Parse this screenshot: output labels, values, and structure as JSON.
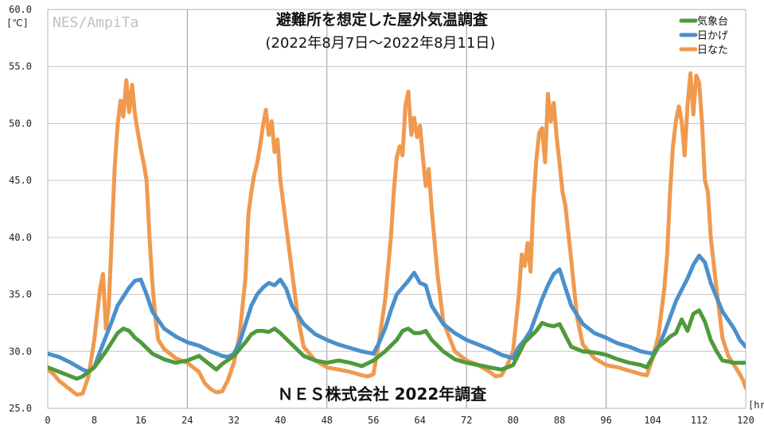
{
  "chart_data": {
    "type": "line",
    "title": "避難所を想定した屋外気温調査",
    "subtitle": "(2022年8月7日～2022年8月11日)",
    "watermark": "NES/AmpiTa",
    "footer": "ＮＥＳ株式会社 2022年調査",
    "y_unit": "[℃]",
    "x_unit": "[hr]",
    "xlim": [
      0,
      120
    ],
    "ylim": [
      25,
      60
    ],
    "x_ticks": [
      0,
      8,
      16,
      24,
      32,
      40,
      48,
      56,
      64,
      72,
      80,
      88,
      96,
      104,
      112,
      120
    ],
    "y_ticks": [
      "25.0",
      "30.0",
      "35.0",
      "40.0",
      "45.0",
      "50.0",
      "55.0",
      "60.0"
    ],
    "grid": true,
    "legend_position": "top-right",
    "series": [
      {
        "name": "気象台",
        "color": "#4e9a3c",
        "points": [
          [
            0,
            28.6
          ],
          [
            2,
            28.2
          ],
          [
            4,
            27.8
          ],
          [
            5,
            27.6
          ],
          [
            6,
            27.8
          ],
          [
            8,
            28.6
          ],
          [
            10,
            30.0
          ],
          [
            11,
            30.8
          ],
          [
            12,
            31.6
          ],
          [
            13,
            32.0
          ],
          [
            14,
            31.8
          ],
          [
            15,
            31.2
          ],
          [
            16,
            30.8
          ],
          [
            18,
            29.8
          ],
          [
            20,
            29.3
          ],
          [
            22,
            29.0
          ],
          [
            24,
            29.2
          ],
          [
            26,
            29.6
          ],
          [
            28,
            28.8
          ],
          [
            29,
            28.4
          ],
          [
            30,
            28.9
          ],
          [
            32,
            29.6
          ],
          [
            34,
            30.8
          ],
          [
            35,
            31.5
          ],
          [
            36,
            31.8
          ],
          [
            37,
            31.8
          ],
          [
            38,
            31.7
          ],
          [
            39,
            32.0
          ],
          [
            40,
            31.6
          ],
          [
            42,
            30.6
          ],
          [
            44,
            29.6
          ],
          [
            46,
            29.2
          ],
          [
            48,
            29.0
          ],
          [
            50,
            29.2
          ],
          [
            52,
            29.0
          ],
          [
            54,
            28.7
          ],
          [
            56,
            29.2
          ],
          [
            58,
            30.0
          ],
          [
            60,
            31.0
          ],
          [
            61,
            31.8
          ],
          [
            62,
            32.0
          ],
          [
            63,
            31.6
          ],
          [
            64,
            31.6
          ],
          [
            65,
            31.8
          ],
          [
            66,
            31.0
          ],
          [
            68,
            30.0
          ],
          [
            70,
            29.3
          ],
          [
            72,
            29.0
          ],
          [
            74,
            28.8
          ],
          [
            76,
            28.6
          ],
          [
            78,
            28.4
          ],
          [
            80,
            28.8
          ],
          [
            81,
            29.8
          ],
          [
            82,
            30.8
          ],
          [
            84,
            31.8
          ],
          [
            85,
            32.5
          ],
          [
            86,
            32.3
          ],
          [
            87,
            32.2
          ],
          [
            88,
            32.4
          ],
          [
            90,
            30.4
          ],
          [
            92,
            30.0
          ],
          [
            94,
            29.9
          ],
          [
            96,
            29.7
          ],
          [
            98,
            29.3
          ],
          [
            100,
            29.0
          ],
          [
            102,
            28.8
          ],
          [
            103,
            28.6
          ],
          [
            104,
            29.5
          ],
          [
            105,
            30.4
          ],
          [
            106,
            30.8
          ],
          [
            107,
            31.3
          ],
          [
            108,
            31.6
          ],
          [
            109,
            32.8
          ],
          [
            110,
            31.8
          ],
          [
            111,
            33.3
          ],
          [
            112,
            33.6
          ],
          [
            113,
            32.6
          ],
          [
            114,
            31.0
          ],
          [
            115,
            30.0
          ],
          [
            116,
            29.2
          ],
          [
            118,
            29.0
          ],
          [
            120,
            29.0
          ]
        ]
      },
      {
        "name": "日かげ",
        "color": "#4a90cc",
        "points": [
          [
            0,
            29.8
          ],
          [
            2,
            29.5
          ],
          [
            4,
            29.0
          ],
          [
            6,
            28.4
          ],
          [
            7,
            28.2
          ],
          [
            8,
            28.6
          ],
          [
            9,
            30.0
          ],
          [
            10,
            31.3
          ],
          [
            11,
            32.6
          ],
          [
            12,
            34.0
          ],
          [
            13,
            34.8
          ],
          [
            14,
            35.6
          ],
          [
            15,
            36.2
          ],
          [
            16,
            36.3
          ],
          [
            17,
            35.0
          ],
          [
            18,
            33.5
          ],
          [
            20,
            32.0
          ],
          [
            22,
            31.3
          ],
          [
            24,
            30.8
          ],
          [
            26,
            30.5
          ],
          [
            28,
            30.0
          ],
          [
            30,
            29.6
          ],
          [
            31,
            29.5
          ],
          [
            32,
            29.8
          ],
          [
            33,
            30.8
          ],
          [
            34,
            32.4
          ],
          [
            35,
            34.0
          ],
          [
            36,
            35.0
          ],
          [
            37,
            35.6
          ],
          [
            38,
            36.0
          ],
          [
            39,
            35.8
          ],
          [
            40,
            36.3
          ],
          [
            41,
            35.5
          ],
          [
            42,
            34.0
          ],
          [
            44,
            32.4
          ],
          [
            46,
            31.5
          ],
          [
            48,
            31.0
          ],
          [
            50,
            30.6
          ],
          [
            52,
            30.3
          ],
          [
            54,
            30.0
          ],
          [
            56,
            29.8
          ],
          [
            57,
            30.8
          ],
          [
            58,
            32.0
          ],
          [
            59,
            33.6
          ],
          [
            60,
            35.0
          ],
          [
            61,
            35.6
          ],
          [
            62,
            36.2
          ],
          [
            63,
            36.9
          ],
          [
            64,
            36.0
          ],
          [
            65,
            35.8
          ],
          [
            66,
            34.0
          ],
          [
            68,
            32.4
          ],
          [
            70,
            31.6
          ],
          [
            72,
            31.0
          ],
          [
            74,
            30.6
          ],
          [
            76,
            30.2
          ],
          [
            78,
            29.7
          ],
          [
            80,
            29.4
          ],
          [
            81,
            30.4
          ],
          [
            82,
            31.0
          ],
          [
            83,
            31.8
          ],
          [
            84,
            33.2
          ],
          [
            85,
            34.6
          ],
          [
            86,
            35.8
          ],
          [
            87,
            36.8
          ],
          [
            88,
            37.2
          ],
          [
            89,
            35.6
          ],
          [
            90,
            34.0
          ],
          [
            92,
            32.4
          ],
          [
            94,
            31.6
          ],
          [
            96,
            31.2
          ],
          [
            98,
            30.7
          ],
          [
            100,
            30.4
          ],
          [
            102,
            30.0
          ],
          [
            104,
            29.8
          ],
          [
            105,
            30.4
          ],
          [
            106,
            31.6
          ],
          [
            107,
            33.0
          ],
          [
            108,
            34.4
          ],
          [
            109,
            35.4
          ],
          [
            110,
            36.4
          ],
          [
            111,
            37.6
          ],
          [
            112,
            38.4
          ],
          [
            113,
            37.8
          ],
          [
            114,
            36.0
          ],
          [
            116,
            33.5
          ],
          [
            118,
            32.0
          ],
          [
            119,
            31.0
          ],
          [
            120,
            30.4
          ]
        ]
      },
      {
        "name": "日なた",
        "color": "#ef9a4f",
        "points": [
          [
            0,
            28.4
          ],
          [
            1,
            28.0
          ],
          [
            2,
            27.4
          ],
          [
            3,
            27.0
          ],
          [
            4,
            26.6
          ],
          [
            5,
            26.2
          ],
          [
            6,
            26.3
          ],
          [
            7,
            27.8
          ],
          [
            8,
            31.0
          ],
          [
            9,
            35.5
          ],
          [
            9.5,
            36.8
          ],
          [
            10,
            32.0
          ],
          [
            10.5,
            34.0
          ],
          [
            11,
            40.0
          ],
          [
            11.5,
            46.0
          ],
          [
            12,
            49.8
          ],
          [
            12.5,
            52.0
          ],
          [
            13,
            50.6
          ],
          [
            13.5,
            53.8
          ],
          [
            14,
            51.0
          ],
          [
            14.5,
            53.4
          ],
          [
            15,
            50.8
          ],
          [
            15.5,
            49.2
          ],
          [
            16,
            47.8
          ],
          [
            16.5,
            46.5
          ],
          [
            17,
            45.0
          ],
          [
            17.5,
            40.0
          ],
          [
            18,
            36.0
          ],
          [
            18.5,
            33.0
          ],
          [
            19,
            31.0
          ],
          [
            20,
            30.2
          ],
          [
            22,
            29.4
          ],
          [
            24,
            29.0
          ],
          [
            26,
            28.2
          ],
          [
            27,
            27.2
          ],
          [
            28,
            26.7
          ],
          [
            29,
            26.4
          ],
          [
            30,
            26.5
          ],
          [
            31,
            27.5
          ],
          [
            32,
            29.0
          ],
          [
            33,
            31.5
          ],
          [
            34,
            36.5
          ],
          [
            34.5,
            42.0
          ],
          [
            35,
            44.0
          ],
          [
            35.5,
            45.5
          ],
          [
            36,
            46.5
          ],
          [
            36.5,
            48.0
          ],
          [
            37,
            49.8
          ],
          [
            37.5,
            51.2
          ],
          [
            38,
            49.0
          ],
          [
            38.5,
            50.2
          ],
          [
            39,
            47.5
          ],
          [
            39.5,
            48.6
          ],
          [
            40,
            45.0
          ],
          [
            41,
            41.0
          ],
          [
            42,
            37.0
          ],
          [
            43,
            33.0
          ],
          [
            44,
            30.4
          ],
          [
            46,
            29.2
          ],
          [
            48,
            28.6
          ],
          [
            50,
            28.4
          ],
          [
            52,
            28.2
          ],
          [
            54,
            27.9
          ],
          [
            55,
            27.8
          ],
          [
            56,
            28.0
          ],
          [
            57,
            31.0
          ],
          [
            58,
            34.5
          ],
          [
            59,
            40.0
          ],
          [
            59.5,
            44.0
          ],
          [
            60,
            47.0
          ],
          [
            60.5,
            48.0
          ],
          [
            61,
            47.2
          ],
          [
            61.5,
            51.6
          ],
          [
            62,
            52.8
          ],
          [
            62.5,
            49.0
          ],
          [
            63,
            50.5
          ],
          [
            63.5,
            48.8
          ],
          [
            64,
            49.8
          ],
          [
            64.5,
            47.0
          ],
          [
            65,
            44.5
          ],
          [
            65.5,
            46.0
          ],
          [
            66,
            42.5
          ],
          [
            67,
            36.8
          ],
          [
            68,
            32.6
          ],
          [
            70,
            30.0
          ],
          [
            72,
            29.2
          ],
          [
            74,
            28.8
          ],
          [
            76,
            28.2
          ],
          [
            77,
            27.8
          ],
          [
            78,
            27.9
          ],
          [
            79,
            28.8
          ],
          [
            80,
            30.0
          ],
          [
            81,
            35.0
          ],
          [
            81.5,
            38.5
          ],
          [
            82,
            37.5
          ],
          [
            82.5,
            39.5
          ],
          [
            83,
            37.0
          ],
          [
            83.5,
            43.0
          ],
          [
            84,
            46.8
          ],
          [
            84.5,
            49.2
          ],
          [
            85,
            49.6
          ],
          [
            85.5,
            46.6
          ],
          [
            86,
            52.6
          ],
          [
            86.5,
            50.2
          ],
          [
            87,
            51.8
          ],
          [
            87.5,
            48.8
          ],
          [
            88,
            46.5
          ],
          [
            88.5,
            44.0
          ],
          [
            89,
            42.8
          ],
          [
            90,
            38.0
          ],
          [
            91,
            33.0
          ],
          [
            92,
            30.6
          ],
          [
            94,
            29.4
          ],
          [
            96,
            28.8
          ],
          [
            98,
            28.6
          ],
          [
            100,
            28.3
          ],
          [
            102,
            28.0
          ],
          [
            103,
            27.9
          ],
          [
            104,
            29.4
          ],
          [
            105,
            31.4
          ],
          [
            106,
            35.5
          ],
          [
            106.5,
            38.5
          ],
          [
            107,
            44.0
          ],
          [
            107.5,
            48.0
          ],
          [
            108,
            50.2
          ],
          [
            108.5,
            51.5
          ],
          [
            109,
            50.2
          ],
          [
            109.5,
            47.2
          ],
          [
            110,
            51.6
          ],
          [
            110.5,
            54.4
          ],
          [
            111,
            50.8
          ],
          [
            111.5,
            54.2
          ],
          [
            112,
            53.6
          ],
          [
            112.5,
            50.0
          ],
          [
            113,
            45.0
          ],
          [
            113.5,
            44.0
          ],
          [
            114,
            40.0
          ],
          [
            115,
            35.4
          ],
          [
            116,
            31.2
          ],
          [
            117,
            29.6
          ],
          [
            118,
            28.8
          ],
          [
            119,
            28.0
          ],
          [
            119.6,
            27.4
          ],
          [
            120,
            26.8
          ]
        ]
      }
    ]
  }
}
